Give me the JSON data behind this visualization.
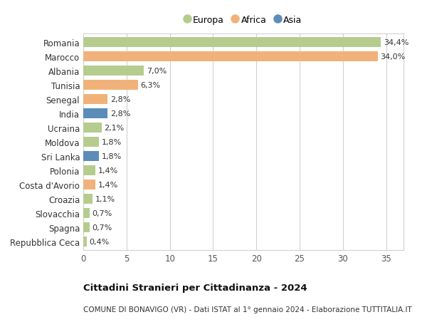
{
  "categories": [
    "Romania",
    "Marocco",
    "Albania",
    "Tunisia",
    "Senegal",
    "India",
    "Ucraina",
    "Moldova",
    "Sri Lanka",
    "Polonia",
    "Costa d'Avorio",
    "Croazia",
    "Slovacchia",
    "Spagna",
    "Repubblica Ceca"
  ],
  "values": [
    34.4,
    34.0,
    7.0,
    6.3,
    2.8,
    2.8,
    2.1,
    1.8,
    1.8,
    1.4,
    1.4,
    1.1,
    0.7,
    0.7,
    0.4
  ],
  "labels": [
    "34,4%",
    "34,0%",
    "7,0%",
    "6,3%",
    "2,8%",
    "2,8%",
    "2,1%",
    "1,8%",
    "1,8%",
    "1,4%",
    "1,4%",
    "1,1%",
    "0,7%",
    "0,7%",
    "0,4%"
  ],
  "continents": [
    "Europa",
    "Africa",
    "Europa",
    "Africa",
    "Africa",
    "Asia",
    "Europa",
    "Europa",
    "Asia",
    "Europa",
    "Africa",
    "Europa",
    "Europa",
    "Europa",
    "Europa"
  ],
  "colors": {
    "Europa": "#b5cc8e",
    "Africa": "#f0b27a",
    "Asia": "#5b8db8"
  },
  "title_bold": "Cittadini Stranieri per Cittadinanza - 2024",
  "subtitle": "COMUNE DI BONAVIGO (VR) - Dati ISTAT al 1° gennaio 2024 - Elaborazione TUTTITALIA.IT",
  "xlim": [
    0,
    37
  ],
  "xticks": [
    0,
    5,
    10,
    15,
    20,
    25,
    30,
    35
  ],
  "bg_color": "#ffffff",
  "grid_color": "#d0d0d0",
  "bar_height": 0.68,
  "label_fontsize": 8.0,
  "ytick_fontsize": 8.5,
  "xtick_fontsize": 8.5
}
